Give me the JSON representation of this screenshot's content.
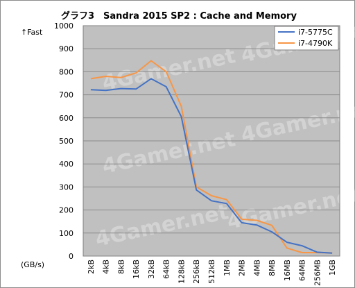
{
  "chart_data": {
    "type": "line",
    "title": "グラフ3　Sandra 2015 SP2 : Cache and Memory",
    "ylabel_top": "↑Fast",
    "ylabel_bottom": "(GB/s)",
    "ylim": [
      0,
      1000
    ],
    "yticks": [
      0,
      100,
      200,
      300,
      400,
      500,
      600,
      700,
      800,
      900,
      1000
    ],
    "grid": true,
    "legend_position": "top-right",
    "watermark": "4Gamer.net",
    "categories": [
      "2kB",
      "4kB",
      "8kB",
      "16kB",
      "32kB",
      "64kB",
      "128kB",
      "256kB",
      "512kB",
      "1MB",
      "2MB",
      "4MB",
      "8MB",
      "16MB",
      "64MB",
      "256MB",
      "1GB"
    ],
    "series": [
      {
        "name": "i7-5775C",
        "color": "#4472c4",
        "values": [
          722,
          719,
          727,
          725,
          770,
          735,
          605,
          287,
          240,
          228,
          145,
          135,
          105,
          60,
          45,
          17,
          13
        ]
      },
      {
        "name": "i7-4790K",
        "color": "#f79646",
        "values": [
          770,
          780,
          775,
          795,
          848,
          800,
          650,
          300,
          262,
          245,
          160,
          155,
          133,
          35,
          15,
          15,
          14
        ]
      }
    ]
  }
}
